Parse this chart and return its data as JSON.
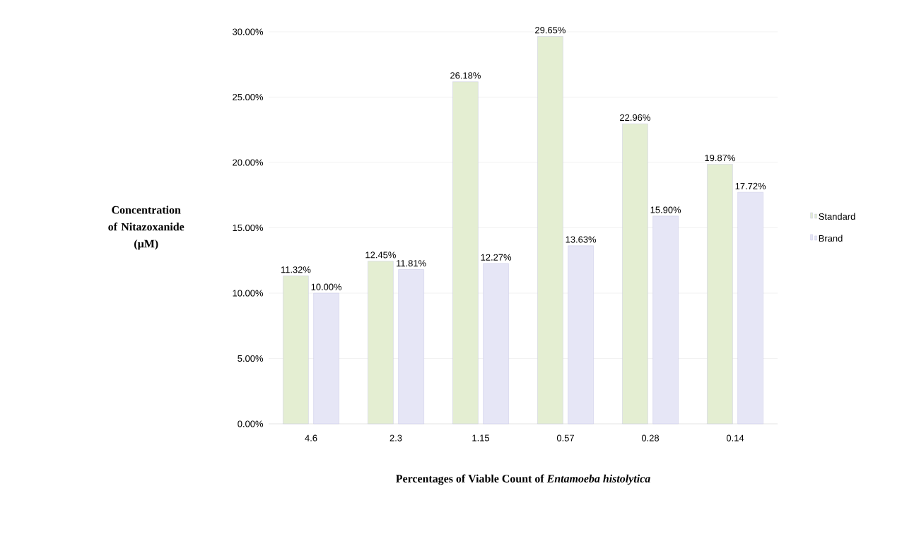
{
  "chart_data": {
    "type": "bar",
    "xlabel": "Percentages of Viable Count of *Entamoeba histolytica*",
    "ylabel": "Concentration of Nitazoxanide (µM)",
    "categories": [
      "4.6",
      "2.3",
      "1.15",
      "0.57",
      "0.28",
      "0.14"
    ],
    "series": [
      {
        "name": "Standard",
        "color": "#e4eed2",
        "values": [
          11.32,
          12.45,
          26.18,
          29.65,
          22.96,
          19.87
        ],
        "value_labels": [
          "11.32%",
          "12.45%",
          "26.18%",
          "29.65%",
          "22.96%",
          "19.87%"
        ]
      },
      {
        "name": "Brand",
        "color": "#e6e6f6",
        "values": [
          10.0,
          11.81,
          12.27,
          13.63,
          15.9,
          17.72
        ],
        "value_labels": [
          "10.00%",
          "11.81%",
          "12.27%",
          "13.63%",
          "15.90%",
          "17.72%"
        ]
      }
    ],
    "ylim": [
      0,
      30
    ],
    "yticks": [
      {
        "value": 0,
        "label": "0.00%"
      },
      {
        "value": 5,
        "label": "5.00%"
      },
      {
        "value": 10,
        "label": "10.00%"
      },
      {
        "value": 15,
        "label": "15.00%"
      },
      {
        "value": 20,
        "label": "20.00%"
      },
      {
        "value": 25,
        "label": "25.00%"
      },
      {
        "value": 30,
        "label": "30.00%"
      }
    ],
    "grid": "y",
    "legend": "right"
  }
}
